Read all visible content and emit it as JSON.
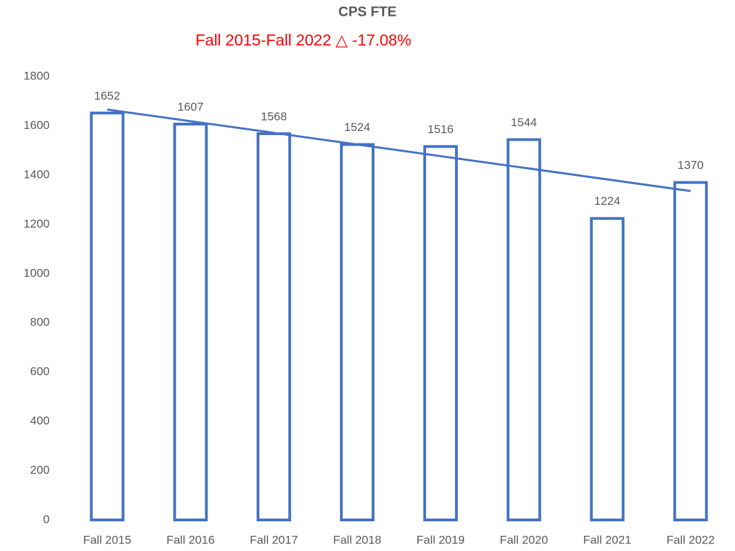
{
  "chart_data": {
    "type": "bar",
    "title": "CPS FTE",
    "subtitle": "Fall 2015-Fall 2022 △ -17.08%",
    "categories": [
      "Fall 2015",
      "Fall 2016",
      "Fall 2017",
      "Fall 2018",
      "Fall 2019",
      "Fall 2020",
      "Fall 2021",
      "Fall 2022"
    ],
    "values": [
      1652,
      1607,
      1568,
      1524,
      1516,
      1544,
      1224,
      1370
    ],
    "color": "#4472c4",
    "bar_style": "outline",
    "trendline": "linear",
    "ylim": [
      0,
      1800
    ],
    "yticks": [
      0,
      200,
      400,
      600,
      800,
      1000,
      1200,
      1400,
      1600,
      1800
    ],
    "grid": false
  }
}
